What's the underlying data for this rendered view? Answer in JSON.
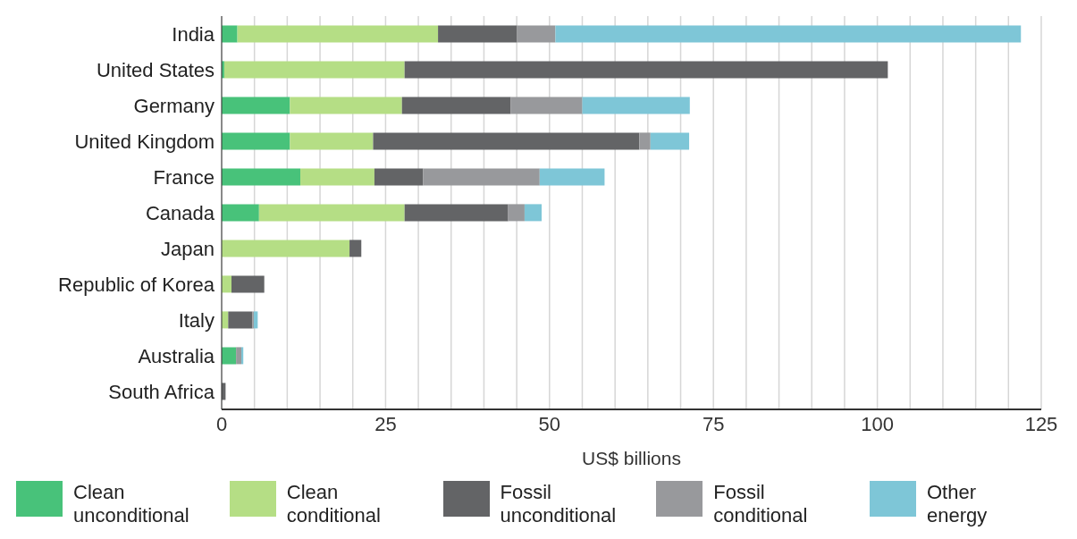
{
  "chart_data": {
    "type": "bar",
    "orientation": "horizontal",
    "stacked": true,
    "xlabel": "US$ billions",
    "categories": [
      "India",
      "United States",
      "Germany",
      "United Kingdom",
      "France",
      "Canada",
      "Japan",
      "Republic of Korea",
      "Italy",
      "Australia",
      "South Africa"
    ],
    "series": [
      {
        "name": "Clean unconditional",
        "color": "#48c27a",
        "values": [
          2.4,
          0.4,
          10.4,
          10.4,
          12.0,
          5.7,
          0,
          0,
          0,
          2.2,
          0
        ]
      },
      {
        "name": "Clean conditional",
        "color": "#b5de85",
        "values": [
          30.6,
          27.5,
          17.1,
          12.7,
          11.3,
          22.2,
          19.5,
          1.5,
          1.0,
          0,
          0
        ]
      },
      {
        "name": "Fossil unconditional",
        "color": "#636466",
        "values": [
          12.0,
          73.7,
          16.6,
          40.6,
          7.4,
          15.8,
          1.8,
          5.0,
          3.7,
          0,
          0.6
        ]
      },
      {
        "name": "Fossil conditional",
        "color": "#98999c",
        "values": [
          5.9,
          0,
          10.9,
          1.7,
          17.8,
          2.5,
          0,
          0,
          0.2,
          0.8,
          0
        ]
      },
      {
        "name": "Other energy",
        "color": "#7ec6d7",
        "values": [
          71.0,
          0,
          16.4,
          5.9,
          9.9,
          2.6,
          0,
          0,
          0.6,
          0.3,
          0
        ]
      }
    ],
    "xlim": [
      0,
      125
    ],
    "xticks": [
      0,
      {
        "value": 5,
        "label": null
      },
      {
        "value": 10,
        "label": null
      },
      {
        "value": 15,
        "label": null
      },
      {
        "value": 20,
        "label": null
      },
      25,
      {
        "value": 30,
        "label": null
      },
      {
        "value": 35,
        "label": null
      },
      {
        "value": 40,
        "label": null
      },
      {
        "value": 45,
        "label": null
      },
      50,
      {
        "value": 55,
        "label": null
      },
      {
        "value": 60,
        "label": null
      },
      {
        "value": 65,
        "label": null
      },
      {
        "value": 70,
        "label": null
      },
      75,
      {
        "value": 80,
        "label": null
      },
      {
        "value": 85,
        "label": null
      },
      {
        "value": 90,
        "label": null
      },
      {
        "value": 95,
        "label": null
      },
      100,
      {
        "value": 105,
        "label": null
      },
      {
        "value": 110,
        "label": null
      },
      {
        "value": 115,
        "label": null
      },
      {
        "value": 120,
        "label": null
      },
      125
    ],
    "grid": "x",
    "legend": "bottom"
  }
}
